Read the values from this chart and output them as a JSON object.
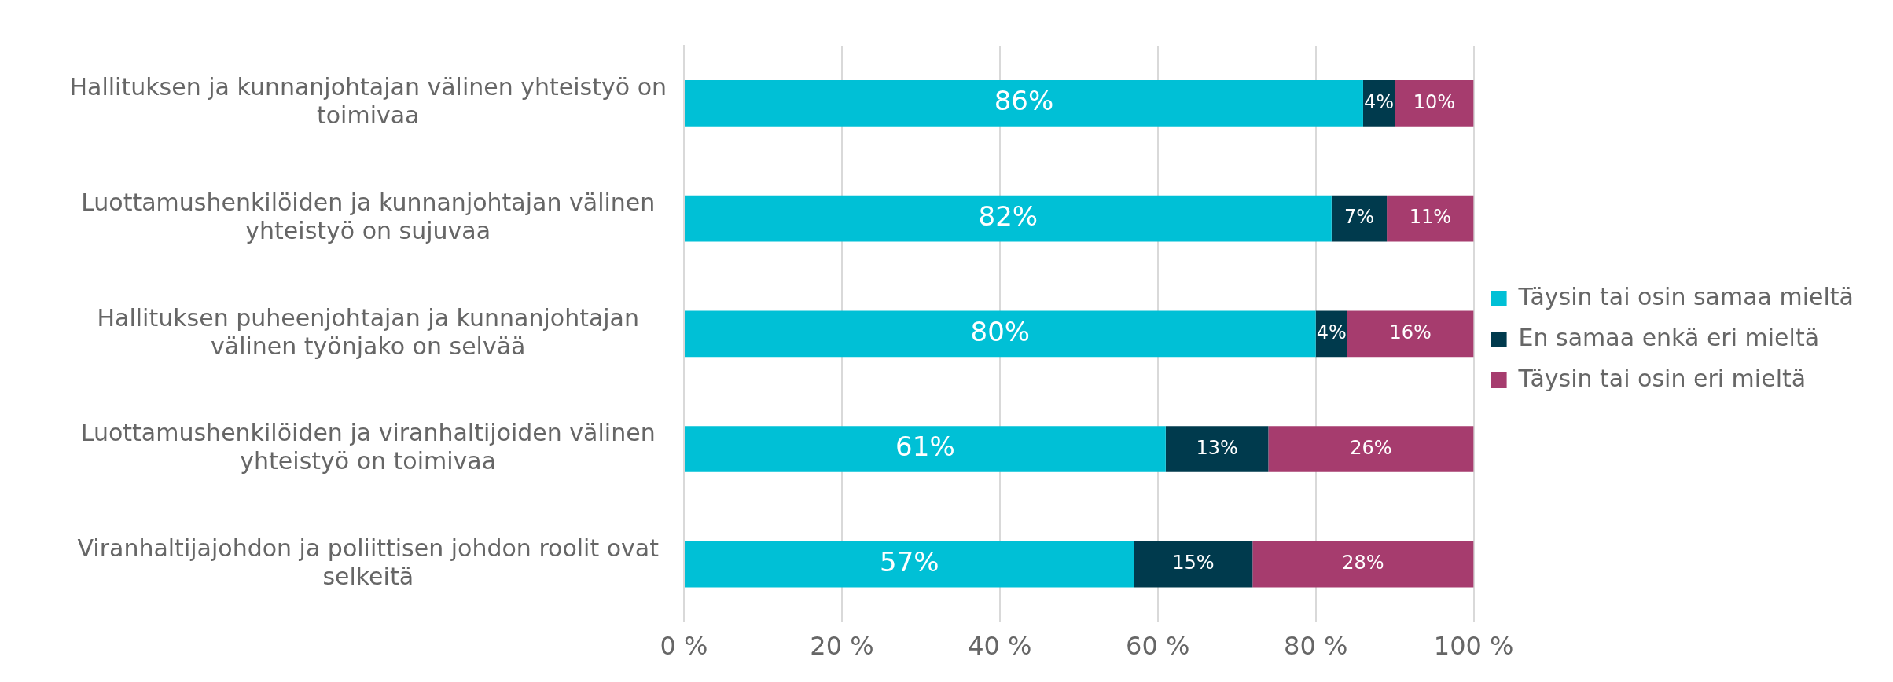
{
  "chart_data": {
    "type": "bar",
    "orientation": "horizontal",
    "stacked": true,
    "categories": [
      "Hallituksen ja kunnanjohtajan välinen yhteistyö on toimivaa",
      "Luottamushenkilöiden ja kunnanjohtajan välinen yhteistyö on sujuvaa",
      "Hallituksen puheenjohtajan ja kunnanjohtajan välinen työnjako on selvää",
      "Luottamushenkilöiden ja viranhaltijoiden välinen yhteistyö on toimivaa",
      "Viranhaltijajohdon ja poliittisen johdon roolit ovat selkeitä"
    ],
    "series": [
      {
        "name": "Täysin tai osin samaa mieltä",
        "color": "#00c0d6",
        "values": [
          86,
          82,
          80,
          61,
          57
        ],
        "value_labels": [
          "86%",
          "82%",
          "80%",
          "61%",
          "57%"
        ]
      },
      {
        "name": "En samaa enkä eri mieltä",
        "color": "#003a4d",
        "values": [
          4,
          7,
          4,
          13,
          15
        ],
        "value_labels": [
          "4%",
          "7%",
          "4%",
          "13%",
          "15%"
        ]
      },
      {
        "name": "Täysin tai osin eri mieltä",
        "color": "#a63c6e",
        "values": [
          10,
          11,
          16,
          26,
          28
        ],
        "value_labels": [
          "10%",
          "11%",
          "16%",
          "26%",
          "28%"
        ]
      }
    ],
    "xlim": [
      0,
      100
    ],
    "xticks": [
      {
        "value": 0,
        "label": "0 %"
      },
      {
        "value": 20,
        "label": "20 %"
      },
      {
        "value": 40,
        "label": "40 %"
      },
      {
        "value": 60,
        "label": "60 %"
      },
      {
        "value": 80,
        "label": "80 %"
      },
      {
        "value": 100,
        "label": "100 %"
      }
    ],
    "grid": "x",
    "legend": "right"
  }
}
